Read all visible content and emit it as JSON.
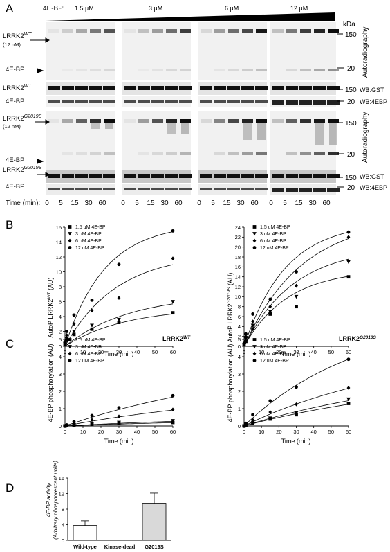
{
  "panel_a": {
    "letter": "A",
    "header_label": "4E-BP:",
    "concentrations": [
      "1.5 μM",
      "3 μM",
      "6 μM",
      "12 μM"
    ],
    "kda_label": "kDa",
    "time_label": "Time (min):",
    "time_points": [
      "0",
      "5",
      "15",
      "30",
      "60"
    ],
    "wt_label": "LRRK2",
    "wt_sup": "WT",
    "wt_conc": "(12 nM)",
    "g_label": "LRRK2",
    "g_sup": "G2019S",
    "g_conc": "(12 nM)",
    "fourebp_label": "4E-BP",
    "mw_150": "150",
    "mw_20": "20",
    "autorad": "Autoradiography",
    "wb_gst": "WB:GST",
    "wb_4ebp": "WB:4EBP",
    "band_intensity": {
      "wt_auto_lrrk2": [
        [
          0.05,
          0.15,
          0.3,
          0.5,
          0.65
        ],
        [
          0.05,
          0.2,
          0.35,
          0.55,
          0.75
        ],
        [
          0.1,
          0.35,
          0.55,
          0.7,
          0.9
        ],
        [
          0.2,
          0.5,
          0.75,
          0.85,
          0.95
        ]
      ],
      "wt_auto_4ebp": [
        [
          0,
          0.03,
          0.05,
          0.08,
          0.1
        ],
        [
          0,
          0.03,
          0.06,
          0.1,
          0.12
        ],
        [
          0,
          0.05,
          0.1,
          0.15,
          0.2
        ],
        [
          0,
          0.1,
          0.2,
          0.3,
          0.4
        ]
      ],
      "g_auto_lrrk2": [
        [
          0.05,
          0.3,
          0.6,
          0.8,
          0.95
        ],
        [
          0.05,
          0.35,
          0.65,
          0.85,
          0.95
        ],
        [
          0.1,
          0.45,
          0.7,
          0.85,
          0.95
        ],
        [
          0.2,
          0.6,
          0.8,
          0.9,
          0.95
        ]
      ],
      "g_auto_4ebp": [
        [
          0,
          0.05,
          0.08,
          0.12,
          0.2
        ],
        [
          0,
          0.05,
          0.1,
          0.15,
          0.25
        ],
        [
          0,
          0.1,
          0.2,
          0.35,
          0.5
        ],
        [
          0,
          0.2,
          0.4,
          0.6,
          0.8
        ]
      ]
    }
  },
  "panel_b": {
    "letter": "B",
    "left_ylabel": "AutoP LRRK2",
    "left_ylabel_sup": "WT",
    "left_ylabel_unit": " (AU)",
    "right_ylabel": "AutoP LRRK2",
    "right_ylabel_sup": "G2019S",
    "right_ylabel_unit": " (AU)",
    "xlabel": "Time (min)",
    "legend": [
      "1.5  uM 4E-BP",
      "3  uM 4E-BP",
      "6  uM 4E-BP",
      "12  uM 4E-BP"
    ]
  },
  "panel_c": {
    "letter": "C",
    "left_title": "LRRK2",
    "left_title_sup": "WT",
    "right_title": "LRRK2",
    "right_title_sup": "G2019S",
    "ylabel": "4E-BP phosphorylation (AU)",
    "xlabel": "Time (min)",
    "legend": [
      "1.5 uM 4E-BP",
      "3  uM 4E-BP",
      "6  uM 4E-BP",
      "12  uM 4E-BP"
    ]
  },
  "panel_d": {
    "letter": "D",
    "ylabel_1": "4E-BP activity",
    "ylabel_2": "(Arbitrary  phosphorescent  units)"
  },
  "chart_data": [
    {
      "id": "B-left",
      "type": "scatter",
      "x": [
        0,
        1,
        5,
        15,
        30,
        60
      ],
      "xlim": [
        0,
        60
      ],
      "ylim": [
        0,
        16
      ],
      "xticks": [
        "0",
        "10",
        "20",
        "30",
        "40",
        "50",
        "60"
      ],
      "yticks": [
        "0",
        "2",
        "4",
        "6",
        "8",
        "10",
        "12",
        "14",
        "16"
      ],
      "xlabel": "Time (min)",
      "series": [
        {
          "name": "1.5  uM 4E-BP",
          "marker": "square",
          "values": [
            0.2,
            0.8,
            1.6,
            2.3,
            3.2,
            4.5
          ],
          "fit": [
            5.2,
            0.03
          ]
        },
        {
          "name": "3  uM 4E-BP",
          "marker": "triangle",
          "values": [
            0.3,
            1.0,
            2.0,
            2.8,
            3.6,
            6.0
          ],
          "fit": [
            7.0,
            0.028
          ]
        },
        {
          "name": "6  uM 4E-BP",
          "marker": "diamond",
          "values": [
            0.5,
            1.5,
            3.0,
            4.8,
            6.5,
            11.8
          ],
          "fit": [
            12.5,
            0.035
          ]
        },
        {
          "name": "12  uM 4E-BP",
          "marker": "circle",
          "values": [
            0.6,
            2.0,
            4.2,
            6.2,
            11.0,
            15.5
          ],
          "fit": [
            16.5,
            0.045
          ]
        }
      ]
    },
    {
      "id": "B-right",
      "type": "scatter",
      "x": [
        0,
        1,
        5,
        15,
        30,
        60
      ],
      "xlim": [
        0,
        60
      ],
      "ylim": [
        0,
        24
      ],
      "xticks": [
        "0",
        "10",
        "20",
        "30",
        "40",
        "50",
        "60"
      ],
      "yticks": [
        "0",
        "2",
        "4",
        "6",
        "8",
        "10",
        "12",
        "14",
        "16",
        "18",
        "20",
        "22",
        "24"
      ],
      "xlabel": "Time (min)",
      "series": [
        {
          "name": "1.5 uM 4E-BP",
          "marker": "square",
          "values": [
            0.3,
            1.0,
            3.5,
            6.5,
            8.0,
            14.0
          ],
          "fit": [
            15.5,
            0.04
          ]
        },
        {
          "name": "3  uM 4E-BP",
          "marker": "triangle",
          "values": [
            0.3,
            1.5,
            4.2,
            7.0,
            10.0,
            17.0
          ],
          "fit": [
            20.0,
            0.035
          ]
        },
        {
          "name": "6  uM 4E-BP",
          "marker": "diamond",
          "values": [
            0.5,
            2.0,
            5.0,
            8.0,
            12.2,
            22.0
          ],
          "fit": [
            26.0,
            0.03
          ]
        },
        {
          "name": "12  uM 4E-BP",
          "marker": "circle",
          "values": [
            0.6,
            2.5,
            6.5,
            9.5,
            15.0,
            23.0
          ],
          "fit": [
            25.0,
            0.042
          ]
        }
      ]
    },
    {
      "id": "C-left",
      "type": "scatter",
      "x": [
        0,
        1,
        5,
        15,
        30,
        60
      ],
      "xlim": [
        0,
        60
      ],
      "ylim": [
        0,
        5
      ],
      "xticks": [
        "0",
        "10",
        "20",
        "30",
        "40",
        "50",
        "60"
      ],
      "yticks": [
        "0",
        "1",
        "2",
        "3",
        "4",
        "5"
      ],
      "xlabel": "Time (min)",
      "series": [
        {
          "name": "1.5 uM 4E-BP",
          "marker": "square",
          "values": [
            0.0,
            0.02,
            0.05,
            0.1,
            0.15,
            0.2
          ],
          "fit": [
            0.5,
            0.008
          ]
        },
        {
          "name": "3  uM 4E-BP",
          "marker": "triangle",
          "values": [
            0.0,
            0.02,
            0.06,
            0.12,
            0.2,
            0.3
          ],
          "fit": [
            0.7,
            0.008
          ]
        },
        {
          "name": "6  uM 4E-BP",
          "marker": "diamond",
          "values": [
            0.0,
            0.04,
            0.15,
            0.35,
            0.55,
            0.95
          ],
          "fit": [
            2.2,
            0.009
          ]
        },
        {
          "name": "12  uM 4E-BP",
          "marker": "circle",
          "values": [
            0.0,
            0.06,
            0.25,
            0.6,
            1.05,
            1.75
          ],
          "fit": [
            4.0,
            0.009
          ]
        }
      ]
    },
    {
      "id": "C-right",
      "type": "scatter",
      "x": [
        0,
        1,
        5,
        15,
        30,
        60
      ],
      "xlim": [
        0,
        60
      ],
      "ylim": [
        0,
        5
      ],
      "xticks": [
        "0",
        "10",
        "20",
        "30",
        "40",
        "50",
        "60"
      ],
      "yticks": [
        "0",
        "1",
        "2",
        "3",
        "4",
        "5"
      ],
      "xlabel": "Time (min)",
      "series": [
        {
          "name": "1.5 uM 4E-BP",
          "marker": "square",
          "values": [
            0.0,
            0.05,
            0.15,
            0.4,
            0.65,
            1.3
          ],
          "fit": [
            3.0,
            0.009
          ]
        },
        {
          "name": "3  uM 4E-BP",
          "marker": "triangle",
          "values": [
            0.0,
            0.05,
            0.2,
            0.45,
            0.75,
            1.55
          ],
          "fit": [
            3.5,
            0.009
          ]
        },
        {
          "name": "6  uM 4E-BP",
          "marker": "diamond",
          "values": [
            0.0,
            0.08,
            0.35,
            0.8,
            1.25,
            2.2
          ],
          "fit": [
            4.5,
            0.011
          ]
        },
        {
          "name": "12  uM 4E-BP",
          "marker": "circle",
          "values": [
            0.0,
            0.15,
            0.65,
            1.45,
            2.25,
            3.85
          ],
          "fit": [
            6.5,
            0.015
          ]
        }
      ]
    },
    {
      "id": "D",
      "type": "bar",
      "categories": [
        "Wild-type",
        "Kinase-dead",
        "G2019S"
      ],
      "values": [
        3.8,
        0,
        9.5
      ],
      "errors": [
        1.2,
        0,
        2.6
      ],
      "colors": [
        "#ffffff",
        "#ffffff",
        "#d9d9d9"
      ],
      "ylim": [
        0,
        16
      ],
      "yticks": [
        "0",
        "4",
        "8",
        "12",
        "16"
      ]
    }
  ]
}
